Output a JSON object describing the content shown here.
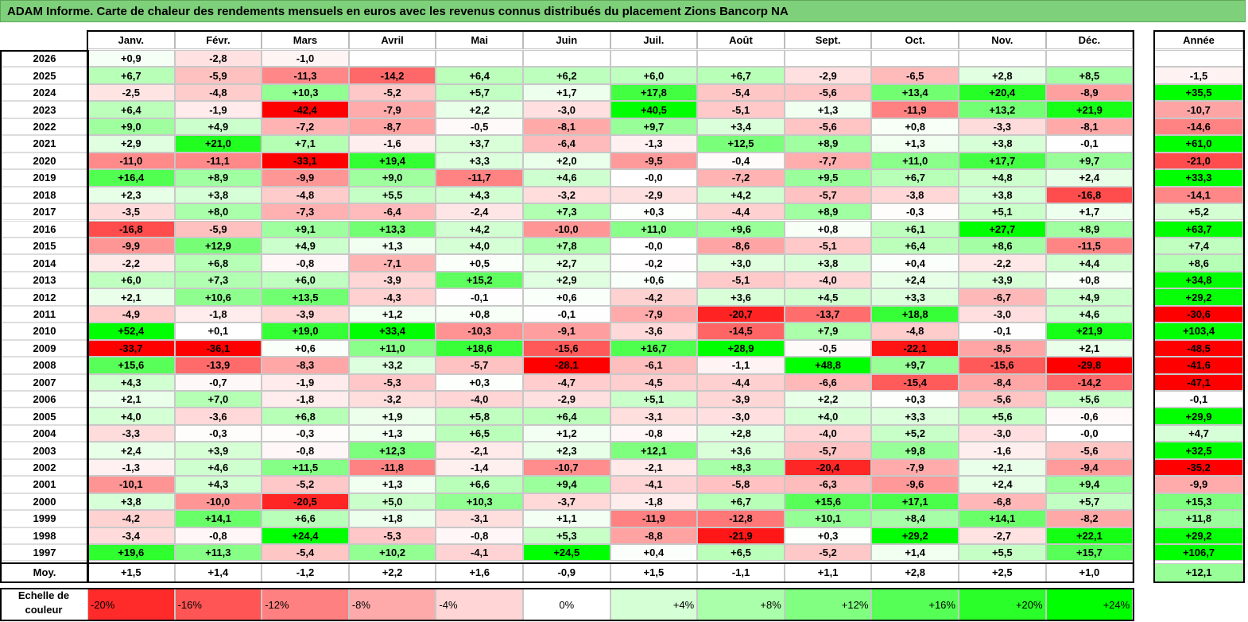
{
  "title": "ADAM Informe. Carte de chaleur des rendements mensuels en euros avec les revenus connus distribués du placement Zions Bancorp NA",
  "chart_data": {
    "type": "heatmap",
    "columns": [
      "Janv.",
      "Févr.",
      "Mars",
      "Avril",
      "Mai",
      "Juin",
      "Juil.",
      "Août",
      "Sept.",
      "Oct.",
      "Nov.",
      "Déc."
    ],
    "year_column_label": "Année",
    "rows": [
      {
        "label": "2026",
        "values": [
          "+0,9",
          "-2,8",
          "-1,0",
          "",
          "",
          "",
          "",
          "",
          "",
          "",
          "",
          ""
        ],
        "year": ""
      },
      {
        "label": "2025",
        "values": [
          "+6,7",
          "-5,9",
          "-11,3",
          "-14,2",
          "+6,4",
          "+6,2",
          "+6,0",
          "+6,7",
          "-2,9",
          "-6,5",
          "+2,8",
          "+8,5"
        ],
        "year": "-1,5"
      },
      {
        "label": "2024",
        "values": [
          "-2,5",
          "-4,8",
          "+10,3",
          "-5,2",
          "+5,7",
          "+1,7",
          "+17,8",
          "-5,4",
          "-5,6",
          "+13,4",
          "+20,4",
          "-8,9"
        ],
        "year": "+35,5"
      },
      {
        "label": "2023",
        "values": [
          "+6,4",
          "-1,9",
          "-42,4",
          "-7,9",
          "+2,2",
          "-3,0",
          "+40,5",
          "-5,1",
          "+1,3",
          "-11,9",
          "+13,2",
          "+21,9"
        ],
        "year": "-10,7"
      },
      {
        "label": "2022",
        "values": [
          "+9,0",
          "+4,9",
          "-7,2",
          "-8,7",
          "-0,5",
          "-8,1",
          "+9,7",
          "+3,4",
          "-5,6",
          "+0,8",
          "-3,3",
          "-8,1"
        ],
        "year": "-14,6"
      },
      {
        "label": "2021",
        "values": [
          "+2,9",
          "+21,0",
          "+7,1",
          "-1,6",
          "+3,7",
          "-6,4",
          "-1,3",
          "+12,5",
          "+8,9",
          "+1,3",
          "+3,8",
          "-0,1"
        ],
        "year": "+61,0"
      },
      {
        "label": "2020",
        "values": [
          "-11,0",
          "-11,1",
          "-33,1",
          "+19,4",
          "+3,3",
          "+2,0",
          "-9,5",
          "-0,4",
          "-7,7",
          "+11,0",
          "+17,7",
          "+9,7"
        ],
        "year": "-21,0"
      },
      {
        "label": "2019",
        "values": [
          "+16,4",
          "+8,9",
          "-9,9",
          "+9,0",
          "-11,7",
          "+4,6",
          "-0,0",
          "-7,2",
          "+9,5",
          "+6,7",
          "+4,8",
          "+2,4"
        ],
        "year": "+33,3"
      },
      {
        "label": "2018",
        "values": [
          "+2,3",
          "+3,8",
          "-4,8",
          "+5,5",
          "+4,3",
          "-3,2",
          "-2,9",
          "+4,2",
          "-5,7",
          "-3,8",
          "+3,8",
          "-16,8"
        ],
        "year": "-14,1"
      },
      {
        "label": "2017",
        "values": [
          "-3,5",
          "+8,0",
          "-7,3",
          "-6,4",
          "-2,4",
          "+7,3",
          "+0,3",
          "-4,4",
          "+8,9",
          "-0,3",
          "+5,1",
          "+1,7"
        ],
        "year": "+5,2"
      },
      {
        "label": "2016",
        "values": [
          "-16,8",
          "-5,9",
          "+9,1",
          "+13,3",
          "+4,2",
          "-10,0",
          "+11,0",
          "+9,6",
          "+0,8",
          "+6,1",
          "+27,7",
          "+8,9"
        ],
        "year": "+63,7"
      },
      {
        "label": "2015",
        "values": [
          "-9,9",
          "+12,9",
          "+4,9",
          "+1,3",
          "+4,0",
          "+7,8",
          "-0,0",
          "-8,6",
          "-5,1",
          "+6,4",
          "+8,6",
          "-11,5"
        ],
        "year": "+7,4"
      },
      {
        "label": "2014",
        "values": [
          "-2,2",
          "+6,8",
          "-0,8",
          "-7,1",
          "+0,5",
          "+2,7",
          "-0,2",
          "+3,0",
          "+3,8",
          "+0,4",
          "-2,2",
          "+4,4"
        ],
        "year": "+8,6"
      },
      {
        "label": "2013",
        "values": [
          "+6,0",
          "+7,3",
          "+6,0",
          "-3,9",
          "+15,2",
          "+2,9",
          "+0,6",
          "-5,1",
          "-4,0",
          "+2,4",
          "+3,9",
          "+0,8"
        ],
        "year": "+34,8"
      },
      {
        "label": "2012",
        "values": [
          "+2,1",
          "+10,6",
          "+13,5",
          "-4,3",
          "-0,1",
          "+0,6",
          "-4,2",
          "+3,6",
          "+4,5",
          "+3,3",
          "-6,7",
          "+4,9"
        ],
        "year": "+29,2"
      },
      {
        "label": "2011",
        "values": [
          "-4,9",
          "-1,8",
          "-3,9",
          "+1,2",
          "+0,8",
          "-0,1",
          "-7,9",
          "-20,7",
          "-13,7",
          "+18,8",
          "-3,0",
          "+4,6"
        ],
        "year": "-30,6"
      },
      {
        "label": "2010",
        "values": [
          "+52,4",
          "+0,1",
          "+19,0",
          "+33,4",
          "-10,3",
          "-9,1",
          "-3,6",
          "-14,5",
          "+7,9",
          "-4,8",
          "-0,1",
          "+21,9"
        ],
        "year": "+103,4"
      },
      {
        "label": "2009",
        "values": [
          "-33,7",
          "-36,1",
          "+0,6",
          "+11,0",
          "+18,6",
          "-15,6",
          "+16,7",
          "+28,9",
          "-0,5",
          "-22,1",
          "-8,5",
          "+2,1"
        ],
        "year": "-48,5"
      },
      {
        "label": "2008",
        "values": [
          "+15,6",
          "-13,9",
          "-8,3",
          "+3,2",
          "-5,7",
          "-28,1",
          "-6,1",
          "-1,1",
          "+48,8",
          "+9,7",
          "-15,6",
          "-29,8"
        ],
        "year": "-41,6"
      },
      {
        "label": "2007",
        "values": [
          "+4,3",
          "-0,7",
          "-1,9",
          "-5,3",
          "+0,3",
          "-4,7",
          "-4,5",
          "-4,4",
          "-6,6",
          "-15,4",
          "-8,4",
          "-14,2"
        ],
        "year": "-47,1"
      },
      {
        "label": "2006",
        "values": [
          "+2,1",
          "+7,0",
          "-1,8",
          "-3,2",
          "-4,0",
          "-2,9",
          "+5,1",
          "-3,9",
          "+2,2",
          "+0,3",
          "-5,6",
          "+5,6"
        ],
        "year": "-0,1"
      },
      {
        "label": "2005",
        "values": [
          "+4,0",
          "-3,6",
          "+6,8",
          "+1,9",
          "+5,8",
          "+6,4",
          "-3,1",
          "-3,0",
          "+4,0",
          "+3,3",
          "+5,6",
          "-0,6"
        ],
        "year": "+29,9"
      },
      {
        "label": "2004",
        "values": [
          "-3,3",
          "-0,3",
          "-0,3",
          "+1,3",
          "+6,5",
          "+1,2",
          "-0,8",
          "+2,8",
          "-4,0",
          "+5,2",
          "-3,0",
          "-0,0"
        ],
        "year": "+4,7"
      },
      {
        "label": "2003",
        "values": [
          "+2,4",
          "+3,9",
          "-0,8",
          "+12,3",
          "-2,1",
          "+2,3",
          "+12,1",
          "+3,6",
          "-5,7",
          "+9,8",
          "-1,6",
          "-5,6"
        ],
        "year": "+32,5"
      },
      {
        "label": "2002",
        "values": [
          "-1,3",
          "+4,6",
          "+11,5",
          "-11,8",
          "-1,4",
          "-10,7",
          "-2,1",
          "+8,3",
          "-20,4",
          "-7,9",
          "+2,1",
          "-9,4"
        ],
        "year": "-35,2"
      },
      {
        "label": "2001",
        "values": [
          "-10,1",
          "+4,3",
          "-5,2",
          "+1,3",
          "+6,6",
          "+9,4",
          "-4,1",
          "-5,8",
          "-6,3",
          "-9,6",
          "+2,4",
          "+9,4"
        ],
        "year": "-9,9"
      },
      {
        "label": "2000",
        "values": [
          "+3,8",
          "-10,0",
          "-20,5",
          "+5,0",
          "+10,3",
          "-3,7",
          "-1,8",
          "+6,7",
          "+15,6",
          "+17,1",
          "-6,8",
          "+5,7"
        ],
        "year": "+15,3"
      },
      {
        "label": "1999",
        "values": [
          "-4,2",
          "+14,1",
          "+6,6",
          "+1,8",
          "-3,1",
          "+1,1",
          "-11,9",
          "-12,8",
          "+10,1",
          "+8,4",
          "+14,1",
          "-8,2"
        ],
        "year": "+11,8"
      },
      {
        "label": "1998",
        "values": [
          "-3,4",
          "-0,8",
          "+24,4",
          "-5,3",
          "-0,8",
          "+5,3",
          "-8,8",
          "-21,9",
          "+0,3",
          "+29,2",
          "-2,7",
          "+22,1"
        ],
        "year": "+29,2"
      },
      {
        "label": "1997",
        "values": [
          "+19,6",
          "+11,3",
          "-5,4",
          "+10,2",
          "-4,1",
          "+24,5",
          "+0,4",
          "+6,5",
          "-5,2",
          "+1,4",
          "+5,5",
          "+15,7"
        ],
        "year": "+106,7"
      }
    ],
    "average_row": {
      "label": "Moy.",
      "values": [
        "+1,5",
        "+1,4",
        "-1,2",
        "+2,2",
        "+1,6",
        "-0,9",
        "+1,5",
        "-1,1",
        "+1,1",
        "+2,8",
        "+2,5",
        "+1,0"
      ],
      "year": "+12,1"
    },
    "color_scale": {
      "label": "Echelle de couleur",
      "stops": [
        "-20%",
        "-16%",
        "-12%",
        "-8%",
        "-4%",
        "0%",
        "+4%",
        "+8%",
        "+12%",
        "+16%",
        "+20%",
        "+24%"
      ],
      "negative_color": "#ff0000",
      "positive_color": "#00ff00",
      "neutral_color": "#ffffff"
    },
    "colors": {
      "title_bar": "#7fd07a"
    }
  }
}
